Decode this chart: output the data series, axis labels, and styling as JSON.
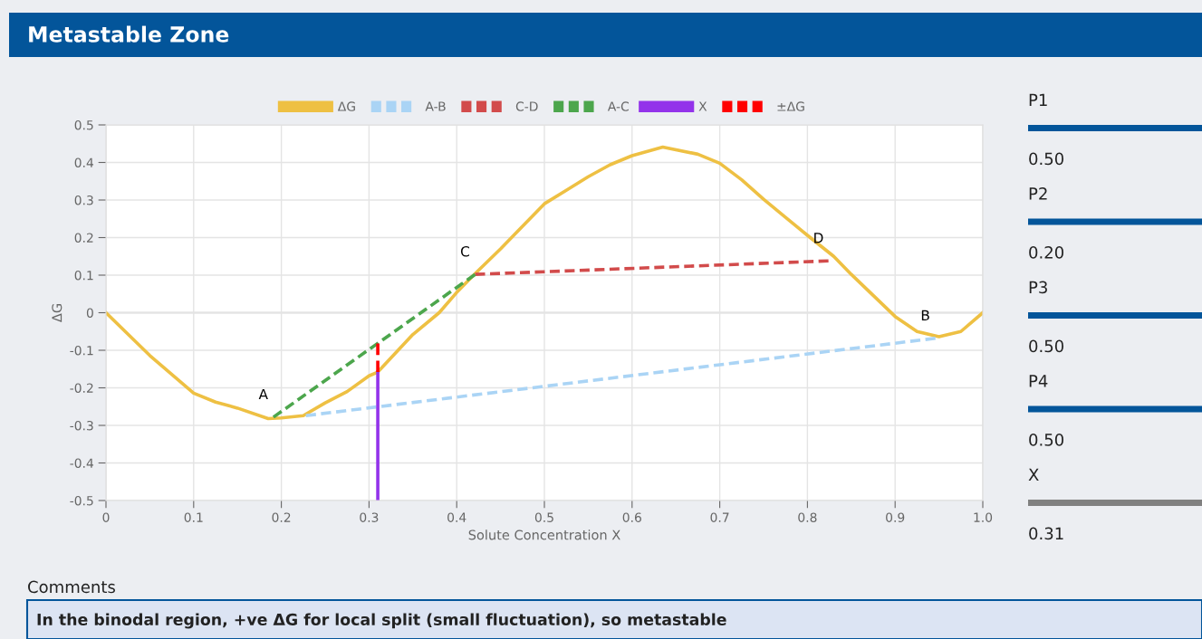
{
  "chart_data": {
    "type": "line",
    "title": "Metastable Zone",
    "xlabel": "Solute Concentration X",
    "ylabel": "ΔG",
    "xlim": [
      0,
      1.0
    ],
    "ylim": [
      -0.5,
      0.5
    ],
    "xticks": [
      0,
      0.1,
      0.2,
      0.3,
      0.4,
      0.5,
      0.6,
      0.7,
      0.8,
      0.9,
      {
        "value": 1,
        "label": "1.0"
      }
    ],
    "yticks": [
      -0.5,
      -0.4,
      -0.3,
      -0.2,
      -0.1,
      0,
      0.1,
      0.2,
      0.3,
      0.4,
      0.5
    ],
    "grid": true,
    "legend": "top",
    "marker": "none",
    "series": [
      {
        "name": "ΔG",
        "color": "#eec043",
        "line_style": "solid",
        "x": [
          0,
          0.05,
          0.1,
          0.125,
          0.15,
          0.185,
          0.2,
          0.225,
          0.25,
          0.275,
          0.3,
          0.31,
          0.35,
          0.38,
          0.4,
          0.42,
          0.45,
          0.5,
          0.525,
          0.55,
          0.575,
          0.6,
          0.635,
          0.675,
          0.7,
          0.725,
          0.75,
          0.775,
          0.8,
          0.83,
          0.85,
          0.875,
          0.9,
          0.925,
          0.95,
          0.975,
          1.0
        ],
        "values": [
          0,
          -0.114,
          -0.214,
          -0.238,
          -0.254,
          -0.282,
          -0.28,
          -0.274,
          -0.24,
          -0.21,
          -0.168,
          -0.158,
          -0.058,
          0,
          0.054,
          0.102,
          0.17,
          0.29,
          0.326,
          0.362,
          0.394,
          0.418,
          0.441,
          0.422,
          0.398,
          0.354,
          0.302,
          0.254,
          0.206,
          0.15,
          0.102,
          0.046,
          -0.01,
          -0.05,
          -0.064,
          -0.05,
          0
        ]
      },
      {
        "name": "A-B",
        "color": "#aad4f5",
        "line_style": "dashed",
        "x": [
          0.228,
          0.946
        ],
        "values": [
          -0.274,
          -0.068
        ]
      },
      {
        "name": "C-D",
        "color": "#d24b4b",
        "line_style": "dashed",
        "x": [
          0.421,
          0.824
        ],
        "values": [
          0.102,
          0.138
        ]
      },
      {
        "name": "A-C",
        "color": "#4ca64c",
        "line_style": "dashed",
        "x": [
          0.191,
          0.421
        ],
        "values": [
          -0.278,
          0.102
        ]
      },
      {
        "name": "X",
        "color": "#9333ea",
        "line_style": "solid",
        "x": [
          0.31,
          0.31
        ],
        "values": [
          -0.5,
          -0.158
        ]
      },
      {
        "name": "±ΔG",
        "color": "#ff0000",
        "line_style": "dashed",
        "x": [
          0.31,
          0.31
        ],
        "values": [
          -0.158,
          -0.082
        ]
      }
    ],
    "annotations": [
      {
        "text": "A",
        "x": 0.191,
        "y": -0.278
      },
      {
        "text": "B",
        "x": 0.946,
        "y": -0.068
      },
      {
        "text": "C",
        "x": 0.421,
        "y": 0.102
      },
      {
        "text": "D",
        "x": 0.824,
        "y": 0.138
      },
      "P1",
      "0.50",
      "P2",
      "0.20",
      "P3",
      "0.50",
      "P4",
      "0.50",
      "X",
      "0.31",
      "Comments",
      "In the binodal region, +ve ΔG for local split (small fluctuation), so metastable"
    ]
  }
}
